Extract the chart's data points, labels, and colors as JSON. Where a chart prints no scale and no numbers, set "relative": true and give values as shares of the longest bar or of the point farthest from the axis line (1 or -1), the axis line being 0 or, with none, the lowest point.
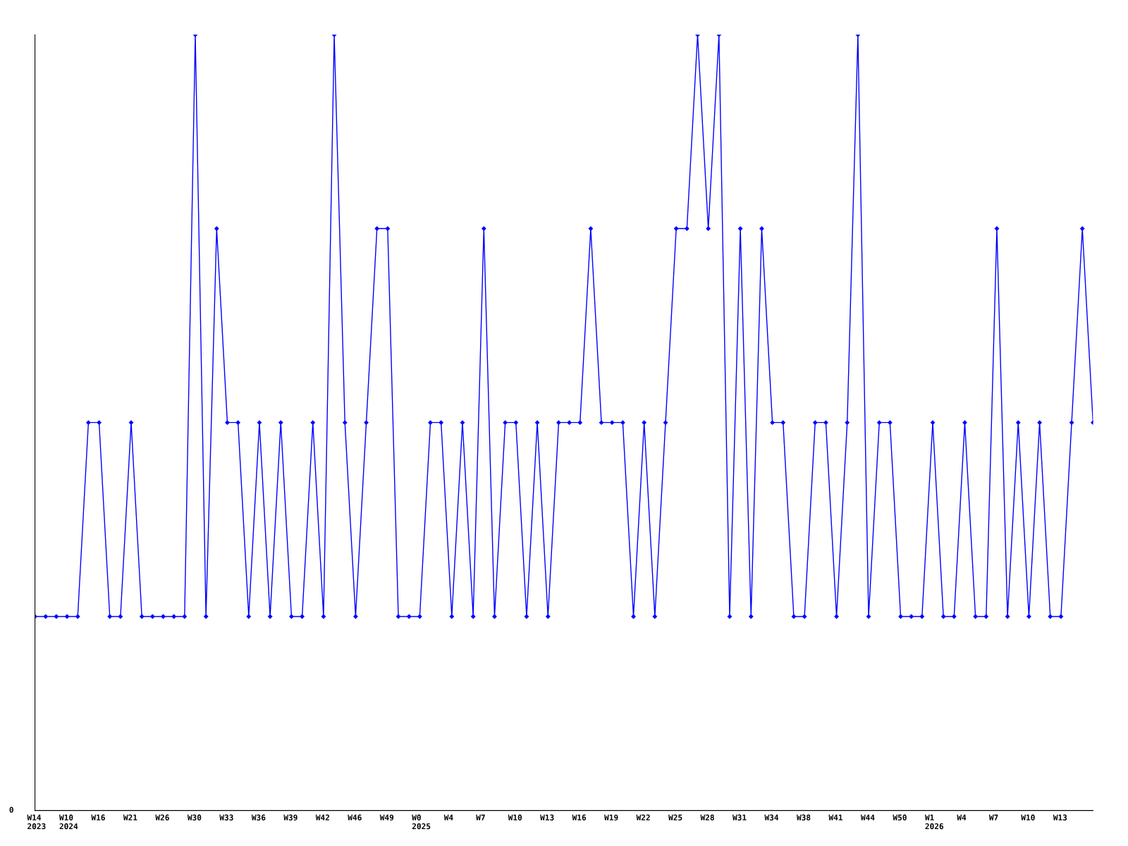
{
  "chart_data": {
    "type": "line",
    "relative": true,
    "categories": [
      "W14\n2023",
      null,
      null,
      "W10\n2024",
      null,
      null,
      "W16",
      null,
      null,
      "W21",
      null,
      null,
      "W26",
      null,
      null,
      "W30",
      null,
      null,
      "W33",
      null,
      null,
      "W36",
      null,
      null,
      "W39",
      null,
      null,
      "W42",
      null,
      null,
      "W46",
      null,
      null,
      "W49",
      null,
      null,
      "W0\n2025",
      null,
      null,
      "W4",
      null,
      null,
      "W7",
      null,
      null,
      "W10",
      null,
      null,
      "W13",
      null,
      null,
      "W16",
      null,
      null,
      "W19",
      null,
      null,
      "W22",
      null,
      null,
      "W25",
      null,
      null,
      "W28",
      null,
      null,
      "W31",
      null,
      null,
      "W34",
      null,
      null,
      "W38",
      null,
      null,
      "W41",
      null,
      null,
      "W44",
      null,
      null,
      "W50",
      null,
      null,
      "W1\n2026",
      null,
      null,
      "W4",
      null,
      null,
      "W7",
      null,
      null,
      "W10",
      null,
      null,
      "W13",
      null,
      null,
      null
    ],
    "series": [
      {
        "color": "#0000ff",
        "values": [
          0.25,
          0.25,
          0.25,
          0.25,
          0.25,
          0.5,
          0.5,
          0.25,
          0.25,
          0.5,
          0.25,
          0.25,
          0.25,
          0.25,
          0.25,
          1,
          0.25,
          0.75,
          0.5,
          0.5,
          0.25,
          0.5,
          0.25,
          0.5,
          0.25,
          0.25,
          0.5,
          0.25,
          1,
          0.5,
          0.25,
          0.5,
          0.75,
          0.75,
          0.25,
          0.25,
          0.25,
          0.5,
          0.5,
          0.25,
          0.5,
          0.25,
          0.75,
          0.25,
          0.5,
          0.5,
          0.25,
          0.5,
          0.25,
          0.5,
          0.5,
          0.5,
          0.75,
          0.5,
          0.5,
          0.5,
          0.25,
          0.5,
          0.25,
          0.5,
          0.75,
          0.75,
          1,
          0.75,
          1,
          0.25,
          0.75,
          0.25,
          0.75,
          0.5,
          0.5,
          0.25,
          0.25,
          0.5,
          0.5,
          0.25,
          0.5,
          1,
          0.25,
          0.5,
          0.5,
          0.25,
          0.25,
          0.25,
          0.5,
          0.25,
          0.25,
          0.5,
          0.25,
          0.25,
          0.75,
          0.25,
          0.5,
          0.25,
          0.5,
          0.25,
          0.25,
          0.5,
          0.75,
          0.5
        ]
      }
    ],
    "marker": "diamond",
    "line_style": "solid",
    "grid": false,
    "legend": false,
    "annotations": [
      "0"
    ]
  }
}
